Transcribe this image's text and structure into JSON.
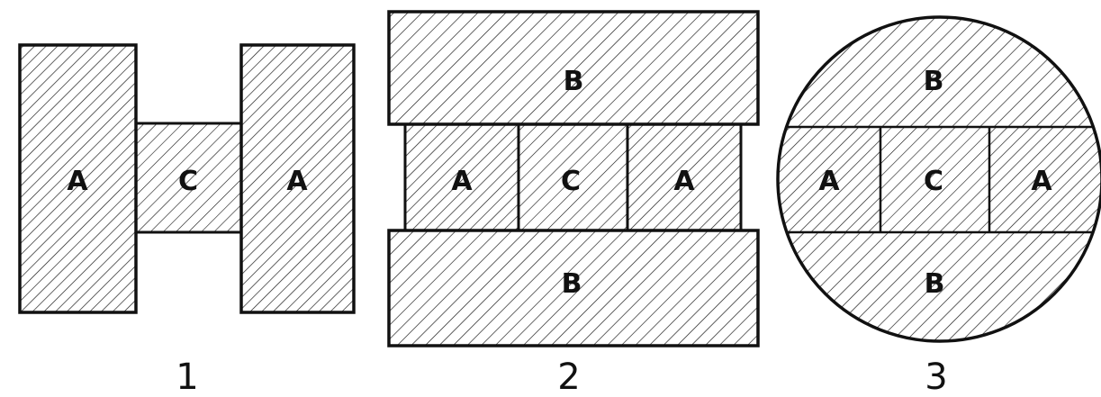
{
  "figures": [
    {
      "number": "1",
      "regions": {
        "left": "A",
        "center": "C",
        "right": "A"
      }
    },
    {
      "number": "2",
      "regions": {
        "top": "B",
        "left": "A",
        "center": "C",
        "right": "A",
        "bottom": "B"
      }
    },
    {
      "number": "3",
      "regions": {
        "top": "B",
        "left": "A",
        "center": "C",
        "right": "A",
        "bottom": "B"
      }
    }
  ],
  "colors": {
    "ink": "#111111",
    "paper": "#ffffff"
  }
}
